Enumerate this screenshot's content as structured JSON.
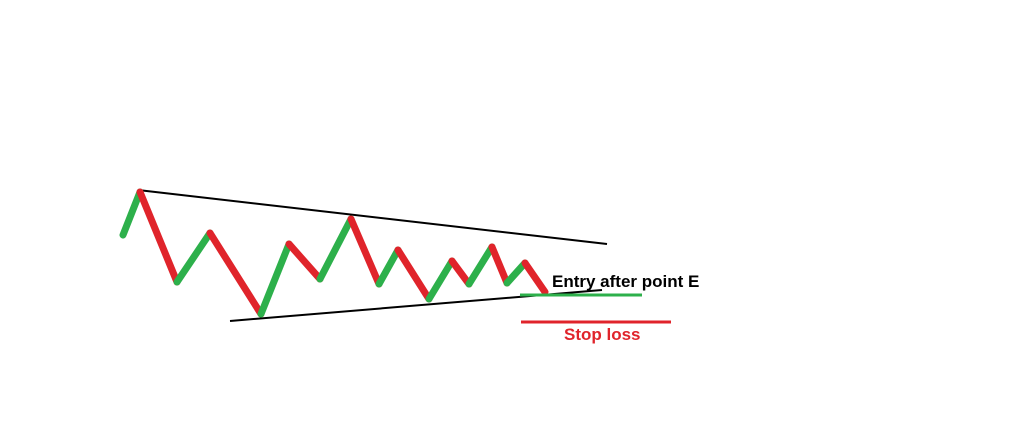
{
  "diagram": {
    "entry_label": "Entry after point E",
    "stop_label": "Stop loss",
    "colors": {
      "background": "#ffffff",
      "up_leg": "#2db04b",
      "down_leg": "#e0242b",
      "trendline": "#000000",
      "entry_line": "#2db04b",
      "stop_line": "#e0242b",
      "entry_text": "#000000",
      "stop_text": "#e0242b"
    }
  }
}
